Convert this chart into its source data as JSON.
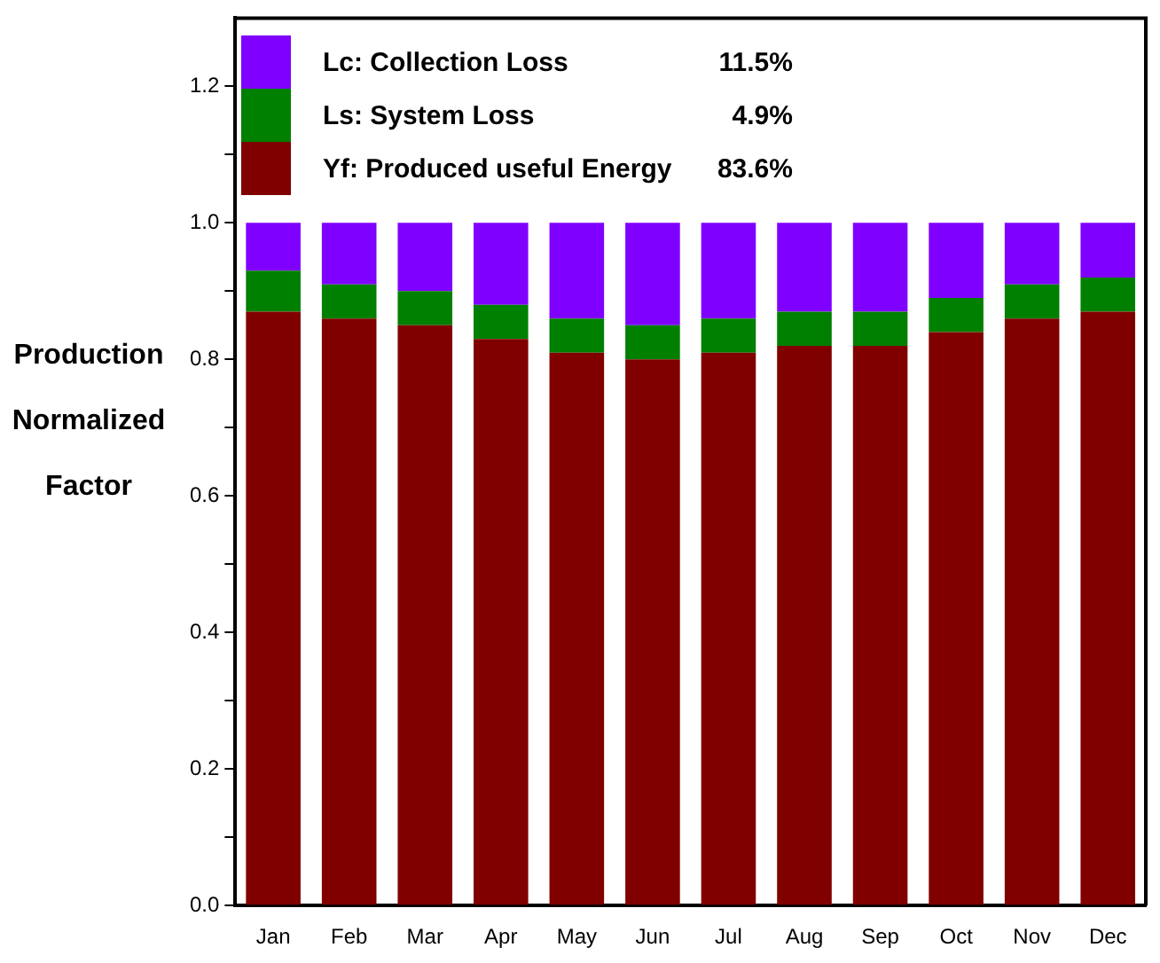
{
  "chart_data": {
    "type": "bar",
    "stacked": true,
    "ylabel": "Production Normalized Factor",
    "categories": [
      "Jan",
      "Feb",
      "Mar",
      "Apr",
      "May",
      "Jun",
      "Jul",
      "Aug",
      "Sep",
      "Oct",
      "Nov",
      "Dec"
    ],
    "series": [
      {
        "name": "Yf: Produced useful Energy",
        "color": "#800000",
        "values": [
          0.87,
          0.86,
          0.85,
          0.83,
          0.81,
          0.8,
          0.81,
          0.82,
          0.82,
          0.84,
          0.86,
          0.87
        ]
      },
      {
        "name": "Ls: System Loss",
        "color": "#008000",
        "values": [
          0.06,
          0.05,
          0.05,
          0.05,
          0.05,
          0.05,
          0.05,
          0.05,
          0.05,
          0.05,
          0.05,
          0.05
        ]
      },
      {
        "name": "Lc: Collection Loss",
        "color": "#8000ff",
        "values": [
          0.07,
          0.09,
          0.1,
          0.12,
          0.14,
          0.15,
          0.14,
          0.13,
          0.13,
          0.11,
          0.09,
          0.08
        ]
      }
    ],
    "annotations": [
      "11.5%",
      "4.9%",
      "83.6%"
    ],
    "legend": "top left",
    "ylim": [
      0,
      1.3
    ],
    "yticks": [
      {
        "value": 0,
        "label": "0.0"
      },
      {
        "value": 0.1,
        "label": null
      },
      {
        "value": 0.2,
        "label": "0.2"
      },
      {
        "value": 0.3,
        "label": null
      },
      {
        "value": 0.4,
        "label": "0.4"
      },
      {
        "value": 0.5,
        "label": null
      },
      {
        "value": 0.6,
        "label": "0.6"
      },
      {
        "value": 0.7,
        "label": null
      },
      {
        "value": 0.8,
        "label": "0.8"
      },
      {
        "value": 0.9,
        "label": null
      },
      {
        "value": 1,
        "label": "1.0"
      },
      {
        "value": 1.1,
        "label": null
      },
      {
        "value": 1.2,
        "label": "1.2"
      }
    ]
  }
}
